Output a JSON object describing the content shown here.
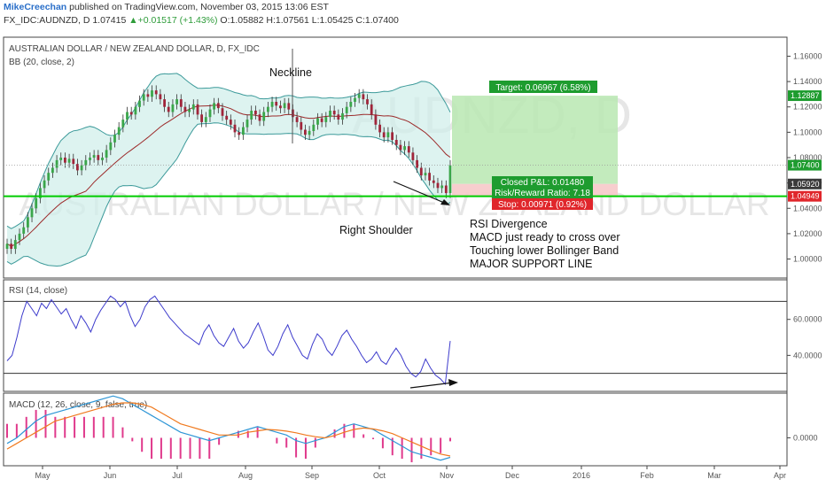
{
  "header": {
    "author": "MikeCreechan",
    "published_text": " published on TradingView.com, November 03, 2015 13:06 EST",
    "symbol_line_prefix": "FX_IDC:AUDNZD, D  1.07415 ",
    "change_text": "▲+0.01517 (+1.43%)",
    "ohlc_text": " O:1.05882  H:1.07561  L:1.05425  C:1.07400"
  },
  "price_panel": {
    "title": "AUSTRALIAN DOLLAR / NEW ZEALAND DOLLAR, D, FX_IDC",
    "indicator_label": "BB (20, close, 2)",
    "watermark_symbol": "AUDNZD, D",
    "watermark_name": "AUSTRALIAN DOLLAR / NEW ZEALAND DOLLAR",
    "y_ticks": [
      "1.16000",
      "1.14000",
      "1.12000",
      "1.10000",
      "1.08000",
      "1.06000",
      "1.04000",
      "1.02000",
      "1.00000"
    ],
    "price_tags": {
      "upper": "1.12887",
      "last": "1.07400",
      "entry": "1.05920",
      "support": "1.04949"
    },
    "position": {
      "target": "Target: 0.06967 (6.58%)",
      "closed_pl": "Closed P&L: 0.01480",
      "risk_reward": "Risk/Reward Ratio: 7.18",
      "stop": "Stop: 0.00971 (0.92%)"
    },
    "annotations": {
      "neckline": "Neckline",
      "right_shoulder": "Right Shoulder",
      "notes": [
        "RSI Divergence",
        "MACD just ready to cross over",
        "Touching lower Bollinger Band",
        "MAJOR SUPPORT LINE"
      ]
    }
  },
  "rsi_panel": {
    "label": "RSI (14, close)",
    "y_ticks": [
      "60.0000",
      "40.0000"
    ]
  },
  "macd_panel": {
    "label": "MACD (12, 26, close, 9, false, true)",
    "y_ticks": [
      "0.0000"
    ]
  },
  "x_axis": {
    "labels": [
      "May",
      "Jun",
      "Jul",
      "Aug",
      "Sep",
      "Oct",
      "Nov",
      "Dec",
      "2016",
      "Feb",
      "Mar",
      "Apr"
    ]
  },
  "colors": {
    "candle_up": "#3aa64a",
    "candle_down": "#a0253a",
    "bb_basis": "#9c2a2a",
    "bb_band": "#3c9a9a",
    "bb_fill": "#cfeeea",
    "support_line": "#00cc00",
    "rsi_line": "#3d3bcc",
    "macd_line": "#2e96d6",
    "signal_line": "#f07a1f",
    "hist": "#e03a8c",
    "target_zone": "#b9e8b2",
    "stop_zone": "#f6c9c9"
  },
  "chart_data": {
    "type": "candlestick",
    "instrument": "FX_IDC:AUDNZD",
    "timeframe": "D",
    "last": {
      "open": 1.05882,
      "high": 1.07561,
      "low": 1.05425,
      "close": 1.074,
      "price": 1.07415,
      "change": 0.01517,
      "change_pct": 1.43
    },
    "ylim": [
      0.985,
      1.175
    ],
    "close_series": [
      1.012,
      1.008,
      1.015,
      1.02,
      1.025,
      1.033,
      1.04,
      1.048,
      1.056,
      1.062,
      1.068,
      1.072,
      1.078,
      1.08,
      1.076,
      1.079,
      1.075,
      1.07,
      1.074,
      1.078,
      1.08,
      1.082,
      1.078,
      1.08,
      1.086,
      1.092,
      1.098,
      1.104,
      1.11,
      1.116,
      1.114,
      1.12,
      1.125,
      1.13,
      1.128,
      1.133,
      1.13,
      1.126,
      1.12,
      1.116,
      1.122,
      1.126,
      1.12,
      1.116,
      1.118,
      1.122,
      1.114,
      1.108,
      1.112,
      1.118,
      1.123,
      1.119,
      1.113,
      1.11,
      1.106,
      1.1,
      1.098,
      1.104,
      1.11,
      1.117,
      1.114,
      1.109,
      1.116,
      1.12,
      1.124,
      1.121,
      1.119,
      1.123,
      1.118,
      1.112,
      1.108,
      1.102,
      1.098,
      1.101,
      1.106,
      1.111,
      1.108,
      1.112,
      1.117,
      1.114,
      1.11,
      1.115,
      1.12,
      1.124,
      1.127,
      1.13,
      1.126,
      1.122,
      1.114,
      1.106,
      1.1,
      1.096,
      1.1,
      1.094,
      1.09,
      1.086,
      1.089,
      1.084,
      1.078,
      1.072,
      1.066,
      1.068,
      1.062,
      1.06,
      1.056,
      1.058,
      1.052,
      1.074
    ],
    "bb": {
      "length": 20,
      "mult": 2
    },
    "support_level": 1.04949,
    "entry_price": 1.0592,
    "target_price": 1.12887,
    "target": {
      "amount": 0.06967,
      "pct": 6.58
    },
    "stop": {
      "amount": 0.00971,
      "pct": 0.92
    },
    "risk_reward": 7.18,
    "closed_pl": 0.0148,
    "rsi": {
      "length": 14,
      "overbought": 70,
      "oversold": 30,
      "ylim": [
        20,
        82
      ],
      "values": [
        37,
        40,
        50,
        62,
        70,
        66,
        62,
        69,
        66,
        71,
        67,
        63,
        66,
        60,
        55,
        62,
        58,
        53,
        60,
        65,
        69,
        73,
        71,
        67,
        70,
        62,
        56,
        60,
        67,
        71,
        73,
        69,
        65,
        61,
        58,
        55,
        52,
        50,
        48,
        46,
        53,
        57,
        51,
        47,
        45,
        50,
        55,
        48,
        44,
        47,
        53,
        58,
        51,
        43,
        40,
        45,
        52,
        57,
        50,
        45,
        40,
        38,
        46,
        52,
        49,
        43,
        40,
        45,
        51,
        54,
        49,
        45,
        40,
        36,
        38,
        42,
        37,
        35,
        40,
        44,
        40,
        34,
        30,
        28,
        31,
        38,
        33,
        29,
        27,
        24,
        48
      ]
    },
    "macd": {
      "fast": 12,
      "slow": 26,
      "signal": [
        -0.004,
        -0.002,
        0.0,
        0.002,
        0.004,
        0.006,
        0.007,
        0.008,
        0.009,
        0.01,
        0.011,
        0.012,
        0.0125,
        0.0125,
        0.012,
        0.011,
        0.009,
        0.007,
        0.005,
        0.004,
        0.003,
        0.002,
        0.001,
        0.001,
        0.001,
        0.002,
        0.0025,
        0.003,
        0.0028,
        0.0024,
        0.0018,
        0.001,
        0.0004,
        0.0,
        0.0008,
        0.002,
        0.003,
        0.0035,
        0.0032,
        0.0025,
        0.0015,
        0.0,
        -0.0015,
        -0.003,
        -0.0045,
        -0.0058,
        -0.0065
      ],
      "ylim": [
        -0.01,
        0.016
      ],
      "macd": [
        -0.002,
        0.0,
        0.003,
        0.006,
        0.008,
        0.009,
        0.01,
        0.011,
        0.012,
        0.013,
        0.014,
        0.015,
        0.014,
        0.012,
        0.01,
        0.008,
        0.006,
        0.004,
        0.002,
        0.001,
        0.0,
        -0.001,
        0.0,
        0.001,
        0.002,
        0.003,
        0.004,
        0.003,
        0.002,
        0.001,
        -0.001,
        -0.002,
        -0.001,
        0.0,
        0.002,
        0.004,
        0.005,
        0.004,
        0.003,
        0.001,
        -0.001,
        -0.003,
        -0.005,
        -0.006,
        -0.007,
        -0.008,
        -0.007
      ]
    }
  }
}
